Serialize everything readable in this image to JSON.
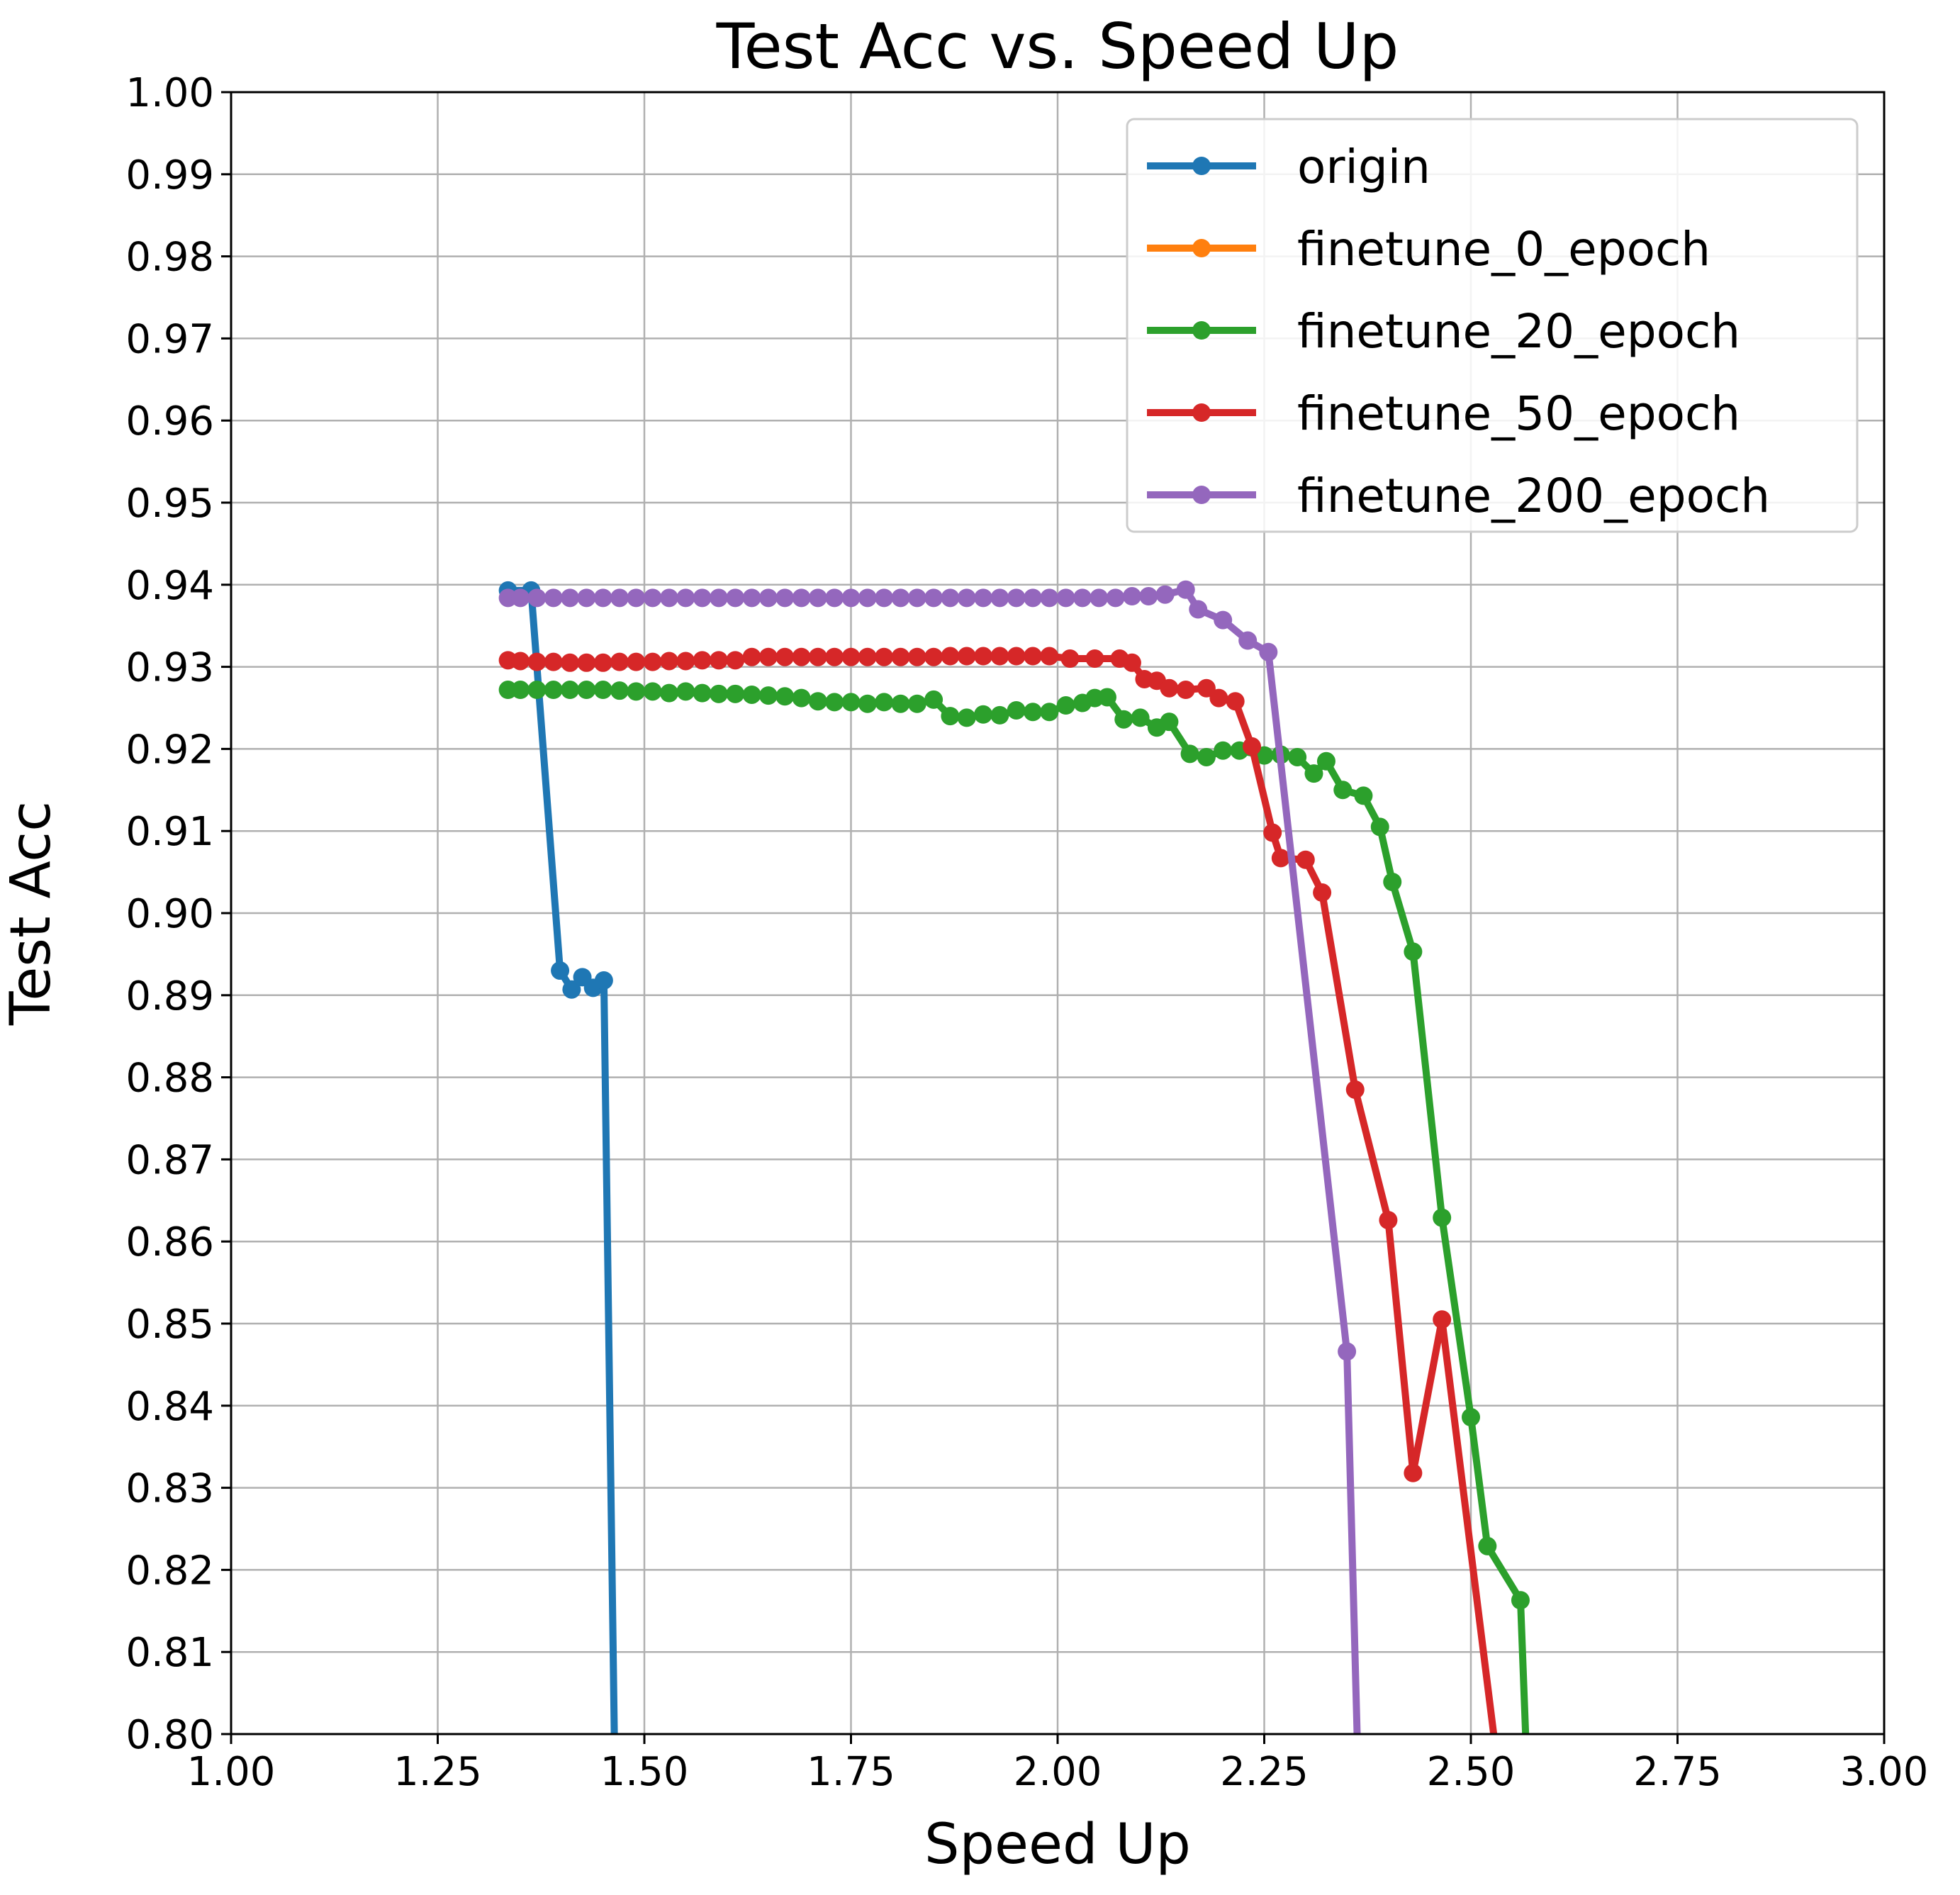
{
  "chart_data": {
    "type": "line",
    "title": "Test Acc vs. Speed Up",
    "xlabel": "Speed Up",
    "ylabel": "Test Acc",
    "xlim": [
      1.0,
      3.0
    ],
    "ylim": [
      0.8,
      1.0
    ],
    "xticks": [
      "1.00",
      "1.25",
      "1.50",
      "1.75",
      "2.00",
      "2.25",
      "2.50",
      "2.75",
      "3.00"
    ],
    "yticks": [
      "0.80",
      "0.81",
      "0.82",
      "0.83",
      "0.84",
      "0.85",
      "0.86",
      "0.87",
      "0.88",
      "0.89",
      "0.90",
      "0.91",
      "0.92",
      "0.93",
      "0.94",
      "0.95",
      "0.96",
      "0.97",
      "0.98",
      "0.99",
      "1.00"
    ],
    "grid": true,
    "legend_position": "top-right",
    "series": [
      {
        "name": "origin",
        "color": "#1f77b4",
        "x": [
          1.335,
          1.363,
          1.398,
          1.412,
          1.425,
          1.438,
          1.451,
          1.465
        ],
        "y": [
          0.9393,
          0.9393,
          0.893,
          0.8907,
          0.8922,
          0.8909,
          0.8918,
          0.79
        ]
      },
      {
        "name": "finetune_0_epoch",
        "color": "#ff7f0e",
        "x": [],
        "y": []
      },
      {
        "name": "finetune_20_epoch",
        "color": "#2ca02c",
        "x": [
          1.335,
          1.35,
          1.37,
          1.39,
          1.41,
          1.43,
          1.45,
          1.47,
          1.49,
          1.51,
          1.53,
          1.55,
          1.57,
          1.59,
          1.61,
          1.63,
          1.65,
          1.67,
          1.69,
          1.71,
          1.73,
          1.75,
          1.77,
          1.79,
          1.81,
          1.83,
          1.85,
          1.87,
          1.89,
          1.91,
          1.93,
          1.95,
          1.97,
          1.99,
          2.01,
          2.03,
          2.045,
          2.06,
          2.08,
          2.1,
          2.12,
          2.135,
          2.16,
          2.18,
          2.2,
          2.22,
          2.25,
          2.27,
          2.29,
          2.31,
          2.325,
          2.345,
          2.37,
          2.39,
          2.405,
          2.43,
          2.465,
          2.5,
          2.52,
          2.56,
          2.57
        ],
        "y": [
          0.9272,
          0.9272,
          0.9272,
          0.9272,
          0.9272,
          0.9272,
          0.9272,
          0.9271,
          0.927,
          0.927,
          0.9268,
          0.927,
          0.9268,
          0.9267,
          0.9267,
          0.9266,
          0.9265,
          0.9264,
          0.9262,
          0.9258,
          0.9257,
          0.9257,
          0.9255,
          0.9257,
          0.9255,
          0.9255,
          0.926,
          0.924,
          0.9238,
          0.9242,
          0.9241,
          0.9247,
          0.9245,
          0.9245,
          0.9253,
          0.9256,
          0.9262,
          0.9263,
          0.9236,
          0.9238,
          0.9226,
          0.9233,
          0.9194,
          0.919,
          0.9198,
          0.9198,
          0.9192,
          0.9193,
          0.919,
          0.917,
          0.9185,
          0.915,
          0.9143,
          0.9105,
          0.9038,
          0.8953,
          0.8629,
          0.8386,
          0.8229,
          0.8163,
          0.79
        ]
      },
      {
        "name": "finetune_50_epoch",
        "color": "#d62728",
        "x": [
          1.335,
          1.35,
          1.37,
          1.39,
          1.41,
          1.43,
          1.45,
          1.47,
          1.49,
          1.51,
          1.53,
          1.55,
          1.57,
          1.59,
          1.61,
          1.63,
          1.65,
          1.67,
          1.69,
          1.71,
          1.73,
          1.75,
          1.77,
          1.79,
          1.81,
          1.83,
          1.85,
          1.87,
          1.89,
          1.91,
          1.93,
          1.95,
          1.97,
          1.99,
          2.015,
          2.045,
          2.075,
          2.09,
          2.105,
          2.12,
          2.135,
          2.155,
          2.18,
          2.195,
          2.215,
          2.235,
          2.26,
          2.27,
          2.3,
          2.32,
          2.36,
          2.4,
          2.43,
          2.465,
          2.54
        ],
        "y": [
          0.9308,
          0.9307,
          0.9306,
          0.9306,
          0.9305,
          0.9305,
          0.9305,
          0.9306,
          0.9306,
          0.9306,
          0.9307,
          0.9307,
          0.9308,
          0.9308,
          0.9308,
          0.9312,
          0.9312,
          0.9312,
          0.9312,
          0.9312,
          0.9312,
          0.9312,
          0.9312,
          0.9312,
          0.9312,
          0.9312,
          0.9312,
          0.9313,
          0.9313,
          0.9313,
          0.9313,
          0.9313,
          0.9313,
          0.9313,
          0.931,
          0.931,
          0.931,
          0.9305,
          0.9285,
          0.9283,
          0.9274,
          0.9272,
          0.9274,
          0.9262,
          0.9258,
          0.9203,
          0.9098,
          0.9067,
          0.9065,
          0.9025,
          0.8785,
          0.8626,
          0.8318,
          0.8505,
          0.79
        ]
      },
      {
        "name": "finetune_200_epoch",
        "color": "#9467bd",
        "x": [
          1.335,
          1.35,
          1.37,
          1.39,
          1.41,
          1.43,
          1.45,
          1.47,
          1.49,
          1.51,
          1.53,
          1.55,
          1.57,
          1.59,
          1.61,
          1.63,
          1.65,
          1.67,
          1.69,
          1.71,
          1.73,
          1.75,
          1.77,
          1.79,
          1.81,
          1.83,
          1.85,
          1.87,
          1.89,
          1.91,
          1.93,
          1.95,
          1.97,
          1.99,
          2.01,
          2.03,
          2.05,
          2.07,
          2.09,
          2.11,
          2.13,
          2.155,
          2.17,
          2.2,
          2.23,
          2.255,
          2.35,
          2.365
        ],
        "y": [
          0.9384,
          0.9384,
          0.9384,
          0.9384,
          0.9384,
          0.9384,
          0.9384,
          0.9384,
          0.9384,
          0.9384,
          0.9384,
          0.9384,
          0.9384,
          0.9384,
          0.9384,
          0.9384,
          0.9384,
          0.9384,
          0.9384,
          0.9384,
          0.9384,
          0.9384,
          0.9384,
          0.9384,
          0.9384,
          0.9384,
          0.9384,
          0.9384,
          0.9384,
          0.9384,
          0.9384,
          0.9384,
          0.9384,
          0.9384,
          0.9384,
          0.9384,
          0.9384,
          0.9384,
          0.9386,
          0.9386,
          0.9388,
          0.9394,
          0.937,
          0.9357,
          0.9332,
          0.9318,
          0.8466,
          0.79
        ]
      }
    ]
  }
}
